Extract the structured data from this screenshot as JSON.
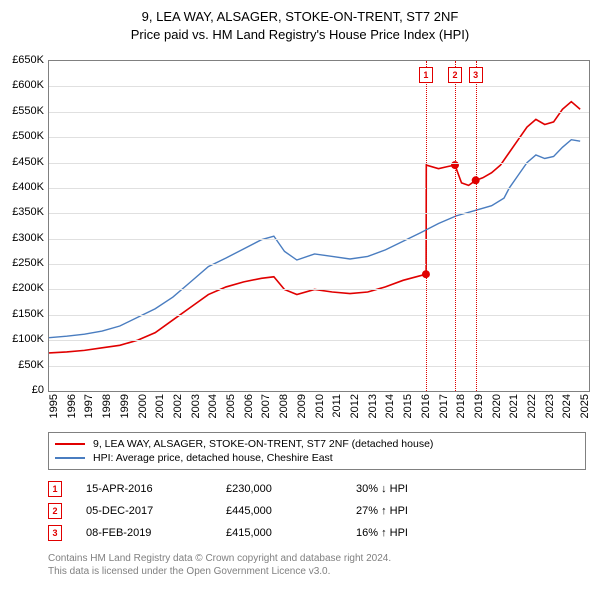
{
  "title_line1": "9, LEA WAY, ALSAGER, STOKE-ON-TRENT, ST7 2NF",
  "title_line2": "Price paid vs. HM Land Registry's House Price Index (HPI)",
  "chart": {
    "type": "line",
    "background_color": "#ffffff",
    "grid_color": "#e0e0e0",
    "border_color": "#808080",
    "xlim": [
      1995,
      2025.5
    ],
    "ylim": [
      0,
      650000
    ],
    "ytick_step": 50000,
    "ytick_prefix": "£",
    "ytick_suffix": "K",
    "ytick_divisor": 1000,
    "xticks": [
      1995,
      1996,
      1997,
      1998,
      1999,
      2000,
      2001,
      2002,
      2003,
      2004,
      2005,
      2006,
      2007,
      2008,
      2009,
      2010,
      2011,
      2012,
      2013,
      2014,
      2015,
      2016,
      2017,
      2018,
      2019,
      2020,
      2021,
      2022,
      2023,
      2024,
      2025
    ],
    "series": [
      {
        "id": "price_paid",
        "color": "#e00000",
        "line_width": 1.6,
        "points": [
          [
            1995,
            75000
          ],
          [
            1996,
            77000
          ],
          [
            1997,
            80000
          ],
          [
            1998,
            85000
          ],
          [
            1999,
            90000
          ],
          [
            2000,
            100000
          ],
          [
            2001,
            115000
          ],
          [
            2002,
            140000
          ],
          [
            2003,
            165000
          ],
          [
            2004,
            190000
          ],
          [
            2005,
            205000
          ],
          [
            2006,
            215000
          ],
          [
            2007,
            222000
          ],
          [
            2007.7,
            225000
          ],
          [
            2008.3,
            200000
          ],
          [
            2009,
            190000
          ],
          [
            2010,
            200000
          ],
          [
            2011,
            195000
          ],
          [
            2012,
            192000
          ],
          [
            2013,
            195000
          ],
          [
            2014,
            205000
          ],
          [
            2015,
            218000
          ],
          [
            2016.29,
            230000
          ],
          [
            2016.3,
            230000
          ],
          [
            2016.31,
            445000
          ],
          [
            2017,
            438000
          ],
          [
            2017.5,
            442000
          ],
          [
            2017.93,
            445000
          ],
          [
            2018.3,
            410000
          ],
          [
            2018.7,
            405000
          ],
          [
            2019.1,
            415000
          ],
          [
            2019.5,
            420000
          ],
          [
            2020,
            430000
          ],
          [
            2020.5,
            445000
          ],
          [
            2021,
            470000
          ],
          [
            2021.5,
            495000
          ],
          [
            2022,
            520000
          ],
          [
            2022.5,
            535000
          ],
          [
            2023,
            525000
          ],
          [
            2023.5,
            530000
          ],
          [
            2024,
            555000
          ],
          [
            2024.5,
            570000
          ],
          [
            2025,
            555000
          ]
        ],
        "markers": [
          {
            "x": 2016.29,
            "y": 230000
          },
          {
            "x": 2017.93,
            "y": 445000
          },
          {
            "x": 2019.1,
            "y": 415000
          }
        ]
      },
      {
        "id": "hpi",
        "color": "#4a7dc0",
        "line_width": 1.4,
        "points": [
          [
            1995,
            105000
          ],
          [
            1996,
            108000
          ],
          [
            1997,
            112000
          ],
          [
            1998,
            118000
          ],
          [
            1999,
            128000
          ],
          [
            2000,
            145000
          ],
          [
            2001,
            162000
          ],
          [
            2002,
            185000
          ],
          [
            2003,
            215000
          ],
          [
            2004,
            245000
          ],
          [
            2005,
            262000
          ],
          [
            2006,
            280000
          ],
          [
            2007,
            298000
          ],
          [
            2007.7,
            305000
          ],
          [
            2008.3,
            275000
          ],
          [
            2009,
            258000
          ],
          [
            2010,
            270000
          ],
          [
            2011,
            265000
          ],
          [
            2012,
            260000
          ],
          [
            2013,
            265000
          ],
          [
            2014,
            278000
          ],
          [
            2015,
            295000
          ],
          [
            2016,
            312000
          ],
          [
            2017,
            330000
          ],
          [
            2018,
            345000
          ],
          [
            2019,
            355000
          ],
          [
            2020,
            365000
          ],
          [
            2020.7,
            380000
          ],
          [
            2021,
            400000
          ],
          [
            2021.5,
            425000
          ],
          [
            2022,
            450000
          ],
          [
            2022.5,
            465000
          ],
          [
            2023,
            458000
          ],
          [
            2023.5,
            462000
          ],
          [
            2024,
            480000
          ],
          [
            2024.5,
            495000
          ],
          [
            2025,
            492000
          ]
        ]
      }
    ],
    "sale_markers": [
      {
        "num": "1",
        "x": 2016.29,
        "color": "#e00000"
      },
      {
        "num": "2",
        "x": 2017.93,
        "color": "#e00000"
      },
      {
        "num": "3",
        "x": 2019.1,
        "color": "#e00000"
      }
    ]
  },
  "legend": {
    "items": [
      {
        "color": "#e00000",
        "label": "9, LEA WAY, ALSAGER, STOKE-ON-TRENT, ST7 2NF (detached house)"
      },
      {
        "color": "#4a7dc0",
        "label": "HPI: Average price, detached house, Cheshire East"
      }
    ]
  },
  "sales": [
    {
      "num": "1",
      "color": "#e00000",
      "date": "15-APR-2016",
      "price": "£230,000",
      "delta": "30% ↓ HPI"
    },
    {
      "num": "2",
      "color": "#e00000",
      "date": "05-DEC-2017",
      "price": "£445,000",
      "delta": "27% ↑ HPI"
    },
    {
      "num": "3",
      "color": "#e00000",
      "date": "08-FEB-2019",
      "price": "£415,000",
      "delta": "16% ↑ HPI"
    }
  ],
  "footer_line1": "Contains HM Land Registry data © Crown copyright and database right 2024.",
  "footer_line2": "This data is licensed under the Open Government Licence v3.0."
}
